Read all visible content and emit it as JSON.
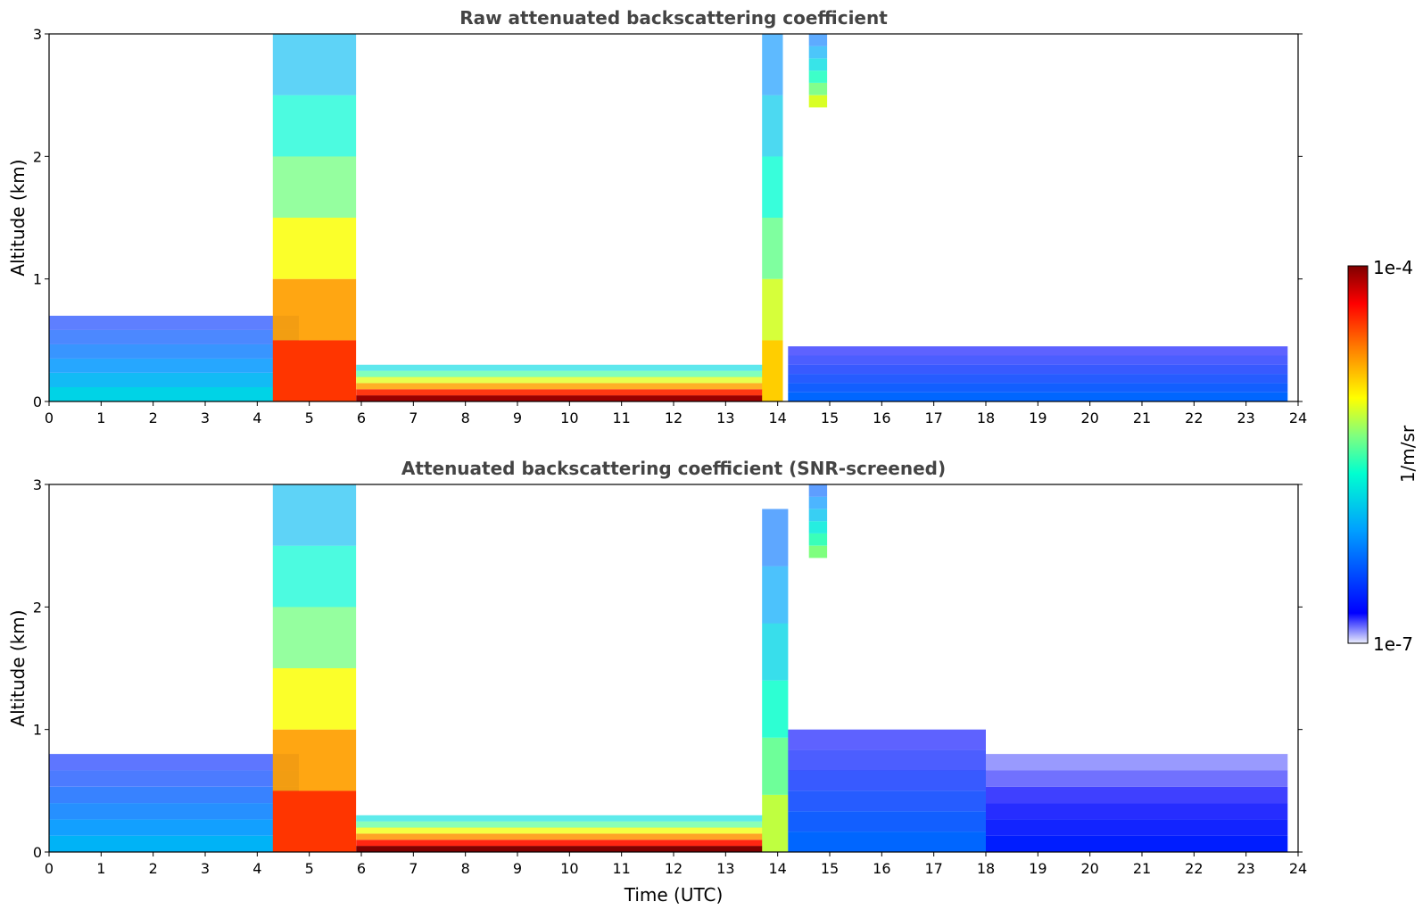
{
  "chart_data": [
    {
      "type": "heatmap",
      "title": "Raw attenuated backscattering coefficient",
      "xlabel": "",
      "ylabel": "Altitude (km)",
      "xlim": [
        0,
        24
      ],
      "ylim": [
        0,
        3
      ],
      "x_ticks": [
        "0",
        "1",
        "2",
        "3",
        "4",
        "5",
        "6",
        "7",
        "8",
        "9",
        "10",
        "11",
        "12",
        "13",
        "14",
        "15",
        "16",
        "17",
        "18",
        "19",
        "20",
        "21",
        "22",
        "23",
        "24"
      ],
      "y_ticks": [
        "0",
        "1",
        "2",
        "3"
      ],
      "features": [
        {
          "name": "aerosol layer",
          "t_start": 0,
          "t_end": 4.8,
          "top_km": 0.7,
          "level": 0.38
        },
        {
          "name": "falling cloud",
          "t_start": 4.3,
          "t_end": 5.9,
          "top_km": 3.0,
          "level": 0.85
        },
        {
          "name": "low cloud layer",
          "t_start": 5.9,
          "t_end": 13.9,
          "top_km": 0.3,
          "level": 0.98
        },
        {
          "name": "cloud wall",
          "t_start": 13.7,
          "t_end": 14.1,
          "top_km": 3.0,
          "level": 0.7
        },
        {
          "name": "high cloud fragment",
          "t_start": 14.6,
          "t_end": 14.95,
          "bottom_km": 2.4,
          "top_km": 3.0,
          "level": 0.62
        },
        {
          "name": "aerosol layer",
          "t_start": 14.2,
          "t_end": 23.8,
          "top_km": 0.45,
          "level": 0.22
        }
      ],
      "data_end_time": 23.8
    },
    {
      "type": "heatmap",
      "title": "Attenuated backscattering coefficient (SNR-screened)",
      "xlabel": "Time (UTC)",
      "ylabel": "Altitude (km)",
      "xlim": [
        0,
        24
      ],
      "ylim": [
        0,
        3
      ],
      "x_ticks": [
        "0",
        "1",
        "2",
        "3",
        "4",
        "5",
        "6",
        "7",
        "8",
        "9",
        "10",
        "11",
        "12",
        "13",
        "14",
        "15",
        "16",
        "17",
        "18",
        "19",
        "20",
        "21",
        "22",
        "23",
        "24"
      ],
      "y_ticks": [
        "0",
        "1",
        "2",
        "3"
      ],
      "features": [
        {
          "name": "aerosol layer",
          "t_start": 0,
          "t_end": 4.8,
          "top_km": 0.8,
          "level": 0.33
        },
        {
          "name": "falling cloud",
          "t_start": 4.3,
          "t_end": 5.9,
          "top_km": 3.0,
          "level": 0.85
        },
        {
          "name": "low cloud layer",
          "t_start": 5.9,
          "t_end": 13.9,
          "top_km": 0.3,
          "level": 1.0
        },
        {
          "name": "cloud wall",
          "t_start": 13.7,
          "t_end": 14.2,
          "top_km": 2.8,
          "level": 0.6
        },
        {
          "name": "high cloud fragment",
          "t_start": 14.6,
          "t_end": 14.95,
          "bottom_km": 2.4,
          "top_km": 3.0,
          "level": 0.55
        },
        {
          "name": "aerosol layer",
          "t_start": 14.2,
          "t_end": 18.0,
          "top_km": 1.0,
          "level": 0.22
        },
        {
          "name": "aerosol layer",
          "t_start": 18.0,
          "t_end": 23.8,
          "top_km": 0.8,
          "level": 0.12
        }
      ],
      "data_end_time": 23.8
    }
  ],
  "colorbar": {
    "label": "1/m/sr",
    "max_label": "1e-4",
    "min_label": "1e-7",
    "colormap": "jet",
    "colors": [
      "#ebeefc",
      "#0000ff",
      "#00a0ff",
      "#00ffd0",
      "#7fff7f",
      "#ffff00",
      "#ff8000",
      "#ff0000",
      "#7f0000"
    ]
  }
}
